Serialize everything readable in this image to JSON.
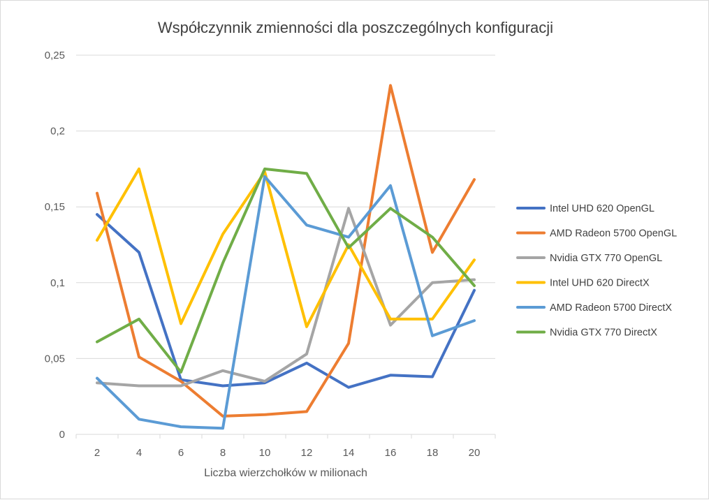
{
  "chart_data": {
    "type": "line",
    "title": "Współczynnik zmienności dla poszczególnych konfiguracji",
    "xlabel": "Liczba wierzchołków w milionach",
    "ylabel": "",
    "categories": [
      "2",
      "4",
      "6",
      "8",
      "10",
      "12",
      "14",
      "16",
      "18",
      "20"
    ],
    "ylim": [
      0,
      0.25
    ],
    "y_ticks": [
      0,
      0.05,
      0.1,
      0.15,
      0.2,
      0.25
    ],
    "y_tick_labels": [
      "0",
      "0,05",
      "0,1",
      "0,15",
      "0,2",
      "0,25"
    ],
    "grid": true,
    "legend_position": "right",
    "series": [
      {
        "name": "Intel UHD 620 OpenGL",
        "color": "#4472C4",
        "values": [
          0.145,
          0.12,
          0.036,
          0.032,
          0.034,
          0.047,
          0.031,
          0.039,
          0.038,
          0.095
        ]
      },
      {
        "name": "AMD Radeon 5700 OpenGL",
        "color": "#ED7D31",
        "values": [
          0.159,
          0.051,
          0.035,
          0.012,
          0.013,
          0.015,
          0.06,
          0.23,
          0.12,
          0.168
        ]
      },
      {
        "name": "Nvidia GTX 770 OpenGL",
        "color": "#A5A5A5",
        "values": [
          0.034,
          0.032,
          0.032,
          0.042,
          0.035,
          0.053,
          0.149,
          0.072,
          0.1,
          0.102
        ]
      },
      {
        "name": "Intel UHD 620 DirectX",
        "color": "#FFC000",
        "values": [
          0.128,
          0.175,
          0.073,
          0.132,
          0.173,
          0.071,
          0.125,
          0.076,
          0.076,
          0.115
        ]
      },
      {
        "name": "AMD Radeon 5700 DirectX",
        "color": "#5B9BD5",
        "values": [
          0.037,
          0.01,
          0.005,
          0.004,
          0.17,
          0.138,
          0.13,
          0.164,
          0.065,
          0.075
        ]
      },
      {
        "name": "Nvidia GTX 770 DirectX",
        "color": "#70AD47",
        "values": [
          0.061,
          0.076,
          0.041,
          0.113,
          0.175,
          0.172,
          0.123,
          0.149,
          0.13,
          0.098
        ]
      }
    ]
  }
}
